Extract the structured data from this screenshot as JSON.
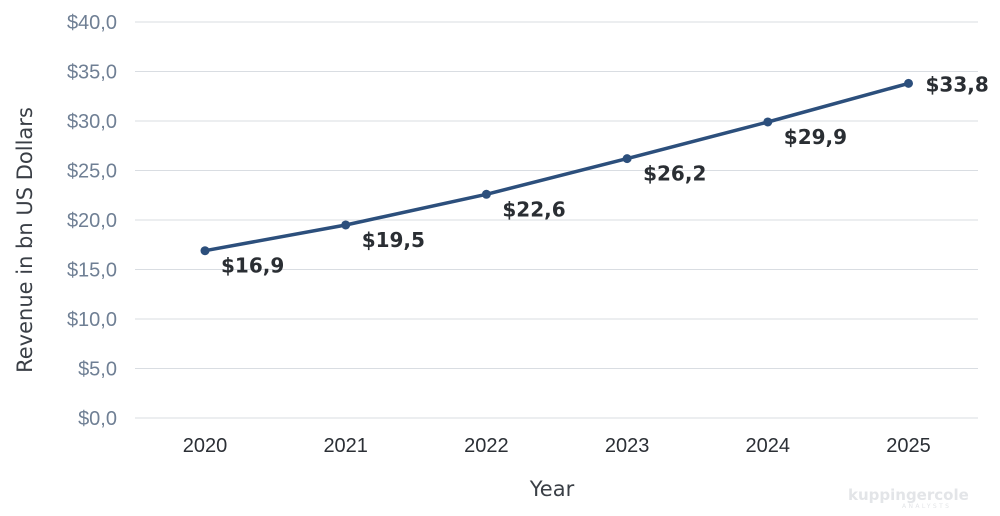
{
  "chart_data": {
    "type": "line",
    "title": "",
    "xlabel": "Year",
    "ylabel": "Revenue in bn US Dollars",
    "categories": [
      "2020",
      "2021",
      "2022",
      "2023",
      "2024",
      "2025"
    ],
    "series": [
      {
        "values": [
          16.9,
          19.5,
          22.6,
          26.2,
          29.9,
          33.8
        ],
        "labels": [
          "$16,9",
          "$19,5",
          "$22,6",
          "$26,2",
          "$29,9",
          "$33,8"
        ],
        "color": "#2c4f7c"
      }
    ],
    "ylim": [
      0,
      40
    ],
    "yticks": [
      0,
      5,
      10,
      15,
      20,
      25,
      30,
      35,
      40
    ],
    "ytick_labels": [
      "$0,0",
      "$5,0",
      "$10,0",
      "$15,0",
      "$20,0",
      "$25,0",
      "$30,0",
      "$35,0",
      "$40,0"
    ],
    "grid": true,
    "legend": "none"
  },
  "watermark": {
    "brand": "kuppingercole",
    "subtext": "ANALYSTS"
  }
}
